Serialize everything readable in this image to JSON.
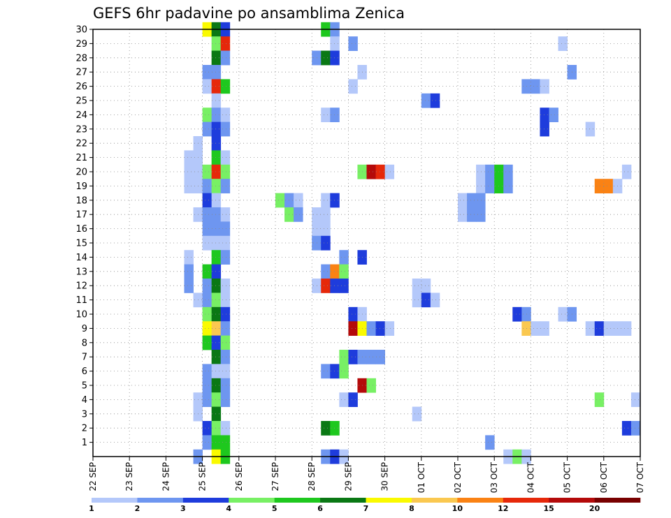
{
  "chart_data": {
    "type": "heatmap",
    "title": "GEFS 6hr padavine po ansamblima Zenica",
    "y_tick_labels": [
      "1",
      "2",
      "3",
      "4",
      "5",
      "6",
      "7",
      "8",
      "9",
      "10",
      "11",
      "12",
      "13",
      "14",
      "15",
      "16",
      "17",
      "18",
      "19",
      "20",
      "21",
      "22",
      "23",
      "24",
      "25",
      "26",
      "27",
      "28",
      "29",
      "30"
    ],
    "x_tick_labels": [
      "22 SEP",
      "23 SEP",
      "24 SEP",
      "25 SEP",
      "26 SEP",
      "27 SEP",
      "28 SEP",
      "29 SEP",
      "30 SEP",
      "01 OCT",
      "02 OCT",
      "03 OCT",
      "04 OCT",
      "05 OCT",
      "06 OCT",
      "07 OCT"
    ],
    "grid": true,
    "colorbar": {
      "levels": [
        "1",
        "2",
        "3",
        "4",
        "5",
        "6",
        "7",
        "8",
        "10",
        "12",
        "15",
        "20"
      ],
      "colors": [
        "#b4c8fa",
        "#6e96f0",
        "#1e3cdc",
        "#78f064",
        "#1ec81e",
        "#0a7814",
        "#fafa00",
        "#fac850",
        "#fa8214",
        "#e6280a",
        "#b40a0a",
        "#780000"
      ]
    },
    "cells": [
      {
        "m": 30,
        "d": "25 SEP 00",
        "b": 7
      },
      {
        "m": 30,
        "d": "25 SEP 06",
        "b": 6
      },
      {
        "m": 30,
        "d": "25 SEP 12",
        "b": 3
      },
      {
        "m": 30,
        "d": "28 SEP 06",
        "b": 5
      },
      {
        "m": 30,
        "d": "28 SEP 12",
        "b": 2
      },
      {
        "m": 29,
        "d": "25 SEP 06",
        "b": 4
      },
      {
        "m": 29,
        "d": "25 SEP 12",
        "b": 10
      },
      {
        "m": 29,
        "d": "28 SEP 12",
        "b": 1
      },
      {
        "m": 29,
        "d": "29 SEP 00",
        "b": 2
      },
      {
        "m": 29,
        "d": "04 OCT 18",
        "b": 1
      },
      {
        "m": 28,
        "d": "25 SEP 06",
        "b": 6
      },
      {
        "m": 28,
        "d": "25 SEP 12",
        "b": 2
      },
      {
        "m": 28,
        "d": "28 SEP 00",
        "b": 2
      },
      {
        "m": 28,
        "d": "28 SEP 06",
        "b": 6
      },
      {
        "m": 28,
        "d": "28 SEP 12",
        "b": 3
      },
      {
        "m": 27,
        "d": "25 SEP 00",
        "b": 2
      },
      {
        "m": 27,
        "d": "25 SEP 06",
        "b": 2
      },
      {
        "m": 27,
        "d": "29 SEP 06",
        "b": 1
      },
      {
        "m": 27,
        "d": "05 OCT 00",
        "b": 2
      },
      {
        "m": 26,
        "d": "25 SEP 00",
        "b": 1
      },
      {
        "m": 26,
        "d": "25 SEP 06",
        "b": 10
      },
      {
        "m": 26,
        "d": "25 SEP 12",
        "b": 5
      },
      {
        "m": 26,
        "d": "29 SEP 00",
        "b": 1
      },
      {
        "m": 26,
        "d": "03 OCT 18",
        "b": 2
      },
      {
        "m": 26,
        "d": "04 OCT 00",
        "b": 2
      },
      {
        "m": 26,
        "d": "04 OCT 06",
        "b": 1
      },
      {
        "m": 25,
        "d": "25 SEP 06",
        "b": 1
      },
      {
        "m": 25,
        "d": "01 OCT 00",
        "b": 2
      },
      {
        "m": 25,
        "d": "01 OCT 06",
        "b": 3
      },
      {
        "m": 24,
        "d": "25 SEP 00",
        "b": 4
      },
      {
        "m": 24,
        "d": "25 SEP 06",
        "b": 2
      },
      {
        "m": 24,
        "d": "25 SEP 12",
        "b": 1
      },
      {
        "m": 24,
        "d": "28 SEP 06",
        "b": 1
      },
      {
        "m": 24,
        "d": "28 SEP 12",
        "b": 2
      },
      {
        "m": 24,
        "d": "04 OCT 06",
        "b": 3
      },
      {
        "m": 24,
        "d": "04 OCT 12",
        "b": 2
      },
      {
        "m": 23,
        "d": "25 SEP 00",
        "b": 2
      },
      {
        "m": 23,
        "d": "25 SEP 06",
        "b": 3
      },
      {
        "m": 23,
        "d": "25 SEP 12",
        "b": 2
      },
      {
        "m": 23,
        "d": "04 OCT 06",
        "b": 3
      },
      {
        "m": 23,
        "d": "05 OCT 12",
        "b": 1
      },
      {
        "m": 22,
        "d": "24 SEP 18",
        "b": 1
      },
      {
        "m": 22,
        "d": "25 SEP 06",
        "b": 3
      },
      {
        "m": 21,
        "d": "24 SEP 12",
        "b": 1
      },
      {
        "m": 21,
        "d": "24 SEP 18",
        "b": 1
      },
      {
        "m": 21,
        "d": "25 SEP 06",
        "b": 5
      },
      {
        "m": 21,
        "d": "25 SEP 12",
        "b": 1
      },
      {
        "m": 20,
        "d": "24 SEP 12",
        "b": 1
      },
      {
        "m": 20,
        "d": "24 SEP 18",
        "b": 1
      },
      {
        "m": 20,
        "d": "25 SEP 00",
        "b": 4
      },
      {
        "m": 20,
        "d": "25 SEP 06",
        "b": 10
      },
      {
        "m": 20,
        "d": "25 SEP 12",
        "b": 4
      },
      {
        "m": 20,
        "d": "29 SEP 06",
        "b": 4
      },
      {
        "m": 20,
        "d": "29 SEP 12",
        "b": 11
      },
      {
        "m": 20,
        "d": "29 SEP 18",
        "b": 10
      },
      {
        "m": 20,
        "d": "30 SEP 00",
        "b": 1
      },
      {
        "m": 20,
        "d": "02 OCT 12",
        "b": 1
      },
      {
        "m": 20,
        "d": "02 OCT 18",
        "b": 2
      },
      {
        "m": 20,
        "d": "03 OCT 00",
        "b": 5
      },
      {
        "m": 20,
        "d": "03 OCT 06",
        "b": 2
      },
      {
        "m": 20,
        "d": "06 OCT 12",
        "b": 1
      },
      {
        "m": 19,
        "d": "24 SEP 12",
        "b": 1
      },
      {
        "m": 19,
        "d": "24 SEP 18",
        "b": 1
      },
      {
        "m": 19,
        "d": "25 SEP 00",
        "b": 2
      },
      {
        "m": 19,
        "d": "25 SEP 06",
        "b": 4
      },
      {
        "m": 19,
        "d": "25 SEP 12",
        "b": 2
      },
      {
        "m": 19,
        "d": "02 OCT 12",
        "b": 1
      },
      {
        "m": 19,
        "d": "02 OCT 18",
        "b": 2
      },
      {
        "m": 19,
        "d": "03 OCT 00",
        "b": 5
      },
      {
        "m": 19,
        "d": "03 OCT 06",
        "b": 2
      },
      {
        "m": 19,
        "d": "05 OCT 18",
        "b": 9
      },
      {
        "m": 19,
        "d": "06 OCT 00",
        "b": 9
      },
      {
        "m": 19,
        "d": "06 OCT 06",
        "b": 1
      },
      {
        "m": 18,
        "d": "25 SEP 00",
        "b": 3
      },
      {
        "m": 18,
        "d": "25 SEP 06",
        "b": 1
      },
      {
        "m": 18,
        "d": "27 SEP 00",
        "b": 4
      },
      {
        "m": 18,
        "d": "27 SEP 06",
        "b": 2
      },
      {
        "m": 18,
        "d": "27 SEP 12",
        "b": 1
      },
      {
        "m": 18,
        "d": "28 SEP 06",
        "b": 1
      },
      {
        "m": 18,
        "d": "28 SEP 12",
        "b": 3
      },
      {
        "m": 18,
        "d": "02 OCT 00",
        "b": 1
      },
      {
        "m": 18,
        "d": "02 OCT 06",
        "b": 2
      },
      {
        "m": 18,
        "d": "02 OCT 12",
        "b": 2
      },
      {
        "m": 17,
        "d": "24 SEP 18",
        "b": 1
      },
      {
        "m": 17,
        "d": "25 SEP 00",
        "b": 2
      },
      {
        "m": 17,
        "d": "25 SEP 06",
        "b": 2
      },
      {
        "m": 17,
        "d": "25 SEP 12",
        "b": 1
      },
      {
        "m": 17,
        "d": "27 SEP 06",
        "b": 4
      },
      {
        "m": 17,
        "d": "27 SEP 12",
        "b": 2
      },
      {
        "m": 17,
        "d": "28 SEP 00",
        "b": 1
      },
      {
        "m": 17,
        "d": "28 SEP 06",
        "b": 1
      },
      {
        "m": 17,
        "d": "02 OCT 00",
        "b": 1
      },
      {
        "m": 17,
        "d": "02 OCT 06",
        "b": 2
      },
      {
        "m": 17,
        "d": "02 OCT 12",
        "b": 2
      },
      {
        "m": 16,
        "d": "25 SEP 00",
        "b": 2
      },
      {
        "m": 16,
        "d": "25 SEP 06",
        "b": 2
      },
      {
        "m": 16,
        "d": "25 SEP 12",
        "b": 2
      },
      {
        "m": 16,
        "d": "28 SEP 00",
        "b": 1
      },
      {
        "m": 16,
        "d": "28 SEP 06",
        "b": 1
      },
      {
        "m": 15,
        "d": "25 SEP 00",
        "b": 1
      },
      {
        "m": 15,
        "d": "25 SEP 06",
        "b": 1
      },
      {
        "m": 15,
        "d": "25 SEP 12",
        "b": 1
      },
      {
        "m": 15,
        "d": "28 SEP 00",
        "b": 2
      },
      {
        "m": 15,
        "d": "28 SEP 06",
        "b": 3
      },
      {
        "m": 14,
        "d": "24 SEP 12",
        "b": 1
      },
      {
        "m": 14,
        "d": "25 SEP 06",
        "b": 5
      },
      {
        "m": 14,
        "d": "25 SEP 12",
        "b": 2
      },
      {
        "m": 14,
        "d": "28 SEP 18",
        "b": 2
      },
      {
        "m": 14,
        "d": "29 SEP 06",
        "b": 3
      },
      {
        "m": 13,
        "d": "24 SEP 12",
        "b": 2
      },
      {
        "m": 13,
        "d": "25 SEP 00",
        "b": 5
      },
      {
        "m": 13,
        "d": "25 SEP 06",
        "b": 3
      },
      {
        "m": 13,
        "d": "28 SEP 06",
        "b": 2
      },
      {
        "m": 13,
        "d": "28 SEP 12",
        "b": 9
      },
      {
        "m": 13,
        "d": "28 SEP 18",
        "b": 4
      },
      {
        "m": 12,
        "d": "24 SEP 12",
        "b": 2
      },
      {
        "m": 12,
        "d": "25 SEP 00",
        "b": 2
      },
      {
        "m": 12,
        "d": "25 SEP 06",
        "b": 6
      },
      {
        "m": 12,
        "d": "25 SEP 12",
        "b": 1
      },
      {
        "m": 12,
        "d": "28 SEP 00",
        "b": 1
      },
      {
        "m": 12,
        "d": "28 SEP 06",
        "b": 10
      },
      {
        "m": 12,
        "d": "28 SEP 12",
        "b": 3
      },
      {
        "m": 12,
        "d": "28 SEP 18",
        "b": 3
      },
      {
        "m": 12,
        "d": "30 SEP 18",
        "b": 1
      },
      {
        "m": 12,
        "d": "01 OCT 00",
        "b": 1
      },
      {
        "m": 11,
        "d": "24 SEP 18",
        "b": 1
      },
      {
        "m": 11,
        "d": "25 SEP 00",
        "b": 2
      },
      {
        "m": 11,
        "d": "25 SEP 06",
        "b": 4
      },
      {
        "m": 11,
        "d": "25 SEP 12",
        "b": 1
      },
      {
        "m": 11,
        "d": "30 SEP 18",
        "b": 1
      },
      {
        "m": 11,
        "d": "01 OCT 00",
        "b": 3
      },
      {
        "m": 11,
        "d": "01 OCT 06",
        "b": 1
      },
      {
        "m": 10,
        "d": "25 SEP 00",
        "b": 4
      },
      {
        "m": 10,
        "d": "25 SEP 06",
        "b": 6
      },
      {
        "m": 10,
        "d": "25 SEP 12",
        "b": 3
      },
      {
        "m": 10,
        "d": "29 SEP 00",
        "b": 3
      },
      {
        "m": 10,
        "d": "29 SEP 06",
        "b": 1
      },
      {
        "m": 10,
        "d": "03 OCT 12",
        "b": 3
      },
      {
        "m": 10,
        "d": "03 OCT 18",
        "b": 2
      },
      {
        "m": 10,
        "d": "04 OCT 18",
        "b": 1
      },
      {
        "m": 10,
        "d": "05 OCT 00",
        "b": 2
      },
      {
        "m": 9,
        "d": "25 SEP 00",
        "b": 7
      },
      {
        "m": 9,
        "d": "25 SEP 06",
        "b": 8
      },
      {
        "m": 9,
        "d": "25 SEP 12",
        "b": 2
      },
      {
        "m": 9,
        "d": "29 SEP 00",
        "b": 11
      },
      {
        "m": 9,
        "d": "29 SEP 06",
        "b": 7
      },
      {
        "m": 9,
        "d": "29 SEP 12",
        "b": 2
      },
      {
        "m": 9,
        "d": "29 SEP 18",
        "b": 3
      },
      {
        "m": 9,
        "d": "30 SEP 00",
        "b": 1
      },
      {
        "m": 9,
        "d": "03 OCT 18",
        "b": 8
      },
      {
        "m": 9,
        "d": "04 OCT 00",
        "b": 1
      },
      {
        "m": 9,
        "d": "04 OCT 06",
        "b": 1
      },
      {
        "m": 9,
        "d": "05 OCT 12",
        "b": 1
      },
      {
        "m": 9,
        "d": "05 OCT 18",
        "b": 3
      },
      {
        "m": 9,
        "d": "06 OCT 00",
        "b": 1
      },
      {
        "m": 9,
        "d": "06 OCT 06",
        "b": 1
      },
      {
        "m": 9,
        "d": "06 OCT 12",
        "b": 1
      },
      {
        "m": 8,
        "d": "25 SEP 00",
        "b": 5
      },
      {
        "m": 8,
        "d": "25 SEP 06",
        "b": 3
      },
      {
        "m": 8,
        "d": "25 SEP 12",
        "b": 4
      },
      {
        "m": 7,
        "d": "25 SEP 06",
        "b": 6
      },
      {
        "m": 7,
        "d": "25 SEP 12",
        "b": 2
      },
      {
        "m": 7,
        "d": "28 SEP 18",
        "b": 4
      },
      {
        "m": 7,
        "d": "29 SEP 00",
        "b": 3
      },
      {
        "m": 7,
        "d": "29 SEP 06",
        "b": 2
      },
      {
        "m": 7,
        "d": "29 SEP 12",
        "b": 2
      },
      {
        "m": 7,
        "d": "29 SEP 18",
        "b": 2
      },
      {
        "m": 6,
        "d": "25 SEP 00",
        "b": 2
      },
      {
        "m": 6,
        "d": "25 SEP 06",
        "b": 1
      },
      {
        "m": 6,
        "d": "25 SEP 12",
        "b": 1
      },
      {
        "m": 6,
        "d": "28 SEP 06",
        "b": 2
      },
      {
        "m": 6,
        "d": "28 SEP 12",
        "b": 3
      },
      {
        "m": 6,
        "d": "28 SEP 18",
        "b": 4
      },
      {
        "m": 5,
        "d": "25 SEP 00",
        "b": 2
      },
      {
        "m": 5,
        "d": "25 SEP 06",
        "b": 6
      },
      {
        "m": 5,
        "d": "25 SEP 12",
        "b": 2
      },
      {
        "m": 5,
        "d": "29 SEP 06",
        "b": 11
      },
      {
        "m": 5,
        "d": "29 SEP 12",
        "b": 4
      },
      {
        "m": 4,
        "d": "24 SEP 18",
        "b": 1
      },
      {
        "m": 4,
        "d": "25 SEP 00",
        "b": 2
      },
      {
        "m": 4,
        "d": "25 SEP 06",
        "b": 4
      },
      {
        "m": 4,
        "d": "25 SEP 12",
        "b": 2
      },
      {
        "m": 4,
        "d": "28 SEP 18",
        "b": 1
      },
      {
        "m": 4,
        "d": "29 SEP 00",
        "b": 3
      },
      {
        "m": 4,
        "d": "05 OCT 18",
        "b": 4
      },
      {
        "m": 4,
        "d": "06 OCT 18",
        "b": 1
      },
      {
        "m": 3,
        "d": "24 SEP 18",
        "b": 1
      },
      {
        "m": 3,
        "d": "25 SEP 06",
        "b": 6
      },
      {
        "m": 3,
        "d": "30 SEP 18",
        "b": 1
      },
      {
        "m": 2,
        "d": "25 SEP 00",
        "b": 3
      },
      {
        "m": 2,
        "d": "25 SEP 06",
        "b": 4
      },
      {
        "m": 2,
        "d": "25 SEP 12",
        "b": 1
      },
      {
        "m": 2,
        "d": "28 SEP 06",
        "b": 6
      },
      {
        "m": 2,
        "d": "28 SEP 12",
        "b": 5
      },
      {
        "m": 2,
        "d": "06 OCT 12",
        "b": 3
      },
      {
        "m": 2,
        "d": "06 OCT 18",
        "b": 2
      },
      {
        "m": 1,
        "d": "25 SEP 00",
        "b": 2
      },
      {
        "m": 1,
        "d": "25 SEP 06",
        "b": 5
      },
      {
        "m": 1,
        "d": "25 SEP 12",
        "b": 5
      },
      {
        "m": 1,
        "d": "02 OCT 18",
        "b": 2
      },
      {
        "m": 0,
        "d": "24 SEP 18",
        "b": 2
      },
      {
        "m": 0,
        "d": "25 SEP 06",
        "b": 7
      },
      {
        "m": 0,
        "d": "25 SEP 12",
        "b": 5
      },
      {
        "m": 0,
        "d": "28 SEP 06",
        "b": 2
      },
      {
        "m": 0,
        "d": "28 SEP 12",
        "b": 3
      },
      {
        "m": 0,
        "d": "28 SEP 18",
        "b": 1
      },
      {
        "m": 0,
        "d": "03 OCT 06",
        "b": 1
      },
      {
        "m": 0,
        "d": "03 OCT 12",
        "b": 4
      },
      {
        "m": 0,
        "d": "03 OCT 18",
        "b": 1
      }
    ]
  }
}
